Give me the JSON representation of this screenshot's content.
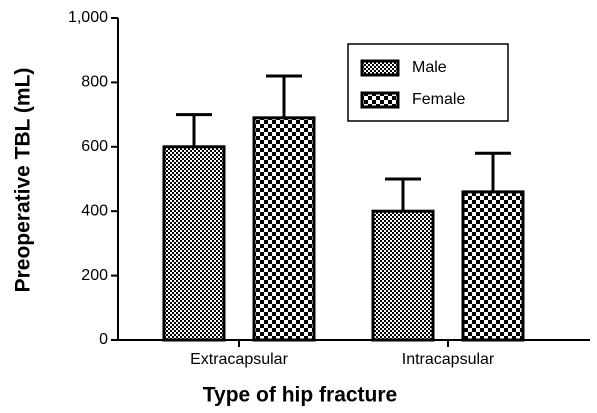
{
  "chart_data": {
    "type": "bar",
    "xlabel": "Type of hip fracture",
    "ylabel": "Preoperative TBL (mL)",
    "categories": [
      "Extracapsular",
      "Intracapsular"
    ],
    "series": [
      {
        "name": "Male",
        "color": "#000000",
        "values": [
          600,
          400
        ],
        "errors": [
          100,
          100
        ]
      },
      {
        "name": "Female",
        "color": "#000000",
        "values": [
          690,
          460
        ],
        "errors": [
          130,
          120
        ]
      }
    ],
    "ylim": [
      0,
      1000
    ],
    "yticks": [
      0,
      200,
      400,
      600,
      800,
      {
        "value": 1000,
        "label": "1,000"
      }
    ],
    "legend": "upper right"
  }
}
